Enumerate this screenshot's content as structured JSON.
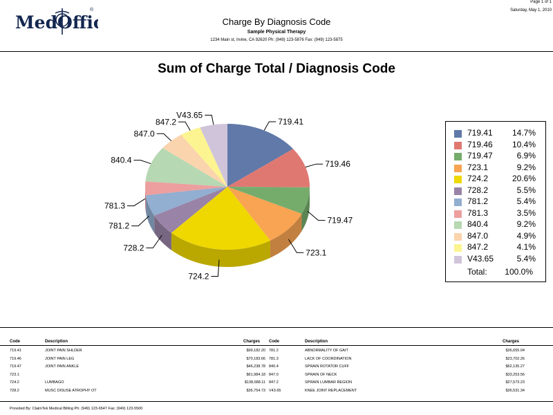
{
  "header": {
    "logo_text": "MedOffice",
    "report_title": "Charge By Diagnosis Code",
    "company": "Sample Physical Therapy",
    "address": "1234 Main st, Irvine, CA 92620 Ph: (949) 123-5876 Fax: (949) 123-5875",
    "page": "Page 1 of 1",
    "date": "Saturday, May 1, 2010"
  },
  "chart_data": {
    "type": "pie",
    "title": "Sum of Charge Total / Diagnosis Code",
    "slices": [
      {
        "label": "719.41",
        "percent": 14.7,
        "color": "#6079a8"
      },
      {
        "label": "719.46",
        "percent": 10.4,
        "color": "#e07872"
      },
      {
        "label": "719.47",
        "percent": 6.9,
        "color": "#75ac6c"
      },
      {
        "label": "723.1",
        "percent": 9.2,
        "color": "#f8a452"
      },
      {
        "label": "724.2",
        "percent": 20.6,
        "color": "#efd700"
      },
      {
        "label": "728.2",
        "percent": 5.5,
        "color": "#9983a6"
      },
      {
        "label": "781.2",
        "percent": 5.4,
        "color": "#92aed0"
      },
      {
        "label": "781.3",
        "percent": 3.5,
        "color": "#ec9f9e"
      },
      {
        "label": "840.4",
        "percent": 9.2,
        "color": "#b6d8b2"
      },
      {
        "label": "847.0",
        "percent": 4.9,
        "color": "#fad4ad"
      },
      {
        "label": "847.2",
        "percent": 4.1,
        "color": "#fcf490"
      },
      {
        "label": "V43.65",
        "percent": 5.4,
        "color": "#d0c4da"
      }
    ],
    "legend": {
      "position": "right",
      "items": [
        {
          "label": "719.41",
          "pct": "14.7%"
        },
        {
          "label": "719.46",
          "pct": "10.4%"
        },
        {
          "label": "719.47",
          "pct": "6.9%"
        },
        {
          "label": "723.1",
          "pct": "9.2%"
        },
        {
          "label": "724.2",
          "pct": "20.6%"
        },
        {
          "label": "728.2",
          "pct": "5.5%"
        },
        {
          "label": "781.2",
          "pct": "5.4%"
        },
        {
          "label": "781.3",
          "pct": "3.5%"
        },
        {
          "label": "840.4",
          "pct": "9.2%"
        },
        {
          "label": "847.0",
          "pct": "4.9%"
        },
        {
          "label": "847.2",
          "pct": "4.1%"
        },
        {
          "label": "V43.65",
          "pct": "5.4%"
        }
      ],
      "total_label": "Total:",
      "total_value": "100.0%"
    }
  },
  "table": {
    "headers": {
      "code": "Code",
      "description": "Description",
      "charges": "Charges"
    },
    "left_rows": [
      {
        "code": "719.41",
        "description": "JOINT PAIN SHLDER",
        "charges": "$99,182.20"
      },
      {
        "code": "719.46",
        "description": "JOINT PAIN LEG",
        "charges": "$70,183.66"
      },
      {
        "code": "719.47",
        "description": "JOINT PAIN ANKLE",
        "charges": "$46,238.78"
      },
      {
        "code": "723.1",
        "description": "",
        "charges": "$61,984.18"
      },
      {
        "code": "724.2",
        "description": "LUMBAGO",
        "charges": "$138,688.11"
      },
      {
        "code": "728.2",
        "description": "MUSC DISUSE ATROPHY OT",
        "charges": "$36,754.73"
      }
    ],
    "right_rows": [
      {
        "code": "781.2",
        "description": "ABNORMALITY OF GAIT",
        "charges": "$36,655.04"
      },
      {
        "code": "781.3",
        "description": "LACK OF COORDINATION",
        "charges": "$23,702.26"
      },
      {
        "code": "840.4",
        "description": "SPRAIN ROTATOR CUFF",
        "charges": "$62,135.27"
      },
      {
        "code": "847.0",
        "description": "SPRAIN OF NECK",
        "charges": "$33,253.56"
      },
      {
        "code": "847.2",
        "description": "SPRAIN LUMBAR REGION",
        "charges": "$27,573.23"
      },
      {
        "code": "V43.65",
        "description": "KNEE JOINT REPLACEMENT",
        "charges": "$36,531.34"
      }
    ]
  },
  "footer": {
    "text": "Provided By: ClaimTek Medical Billing Ph: (949) 123-6547 Fax: (949) 123-5500"
  }
}
